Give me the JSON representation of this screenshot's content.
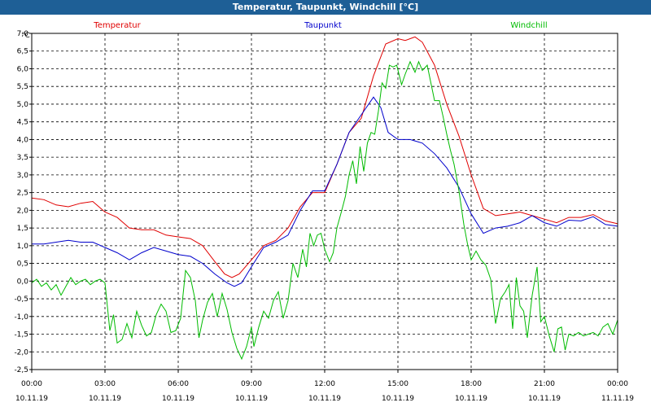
{
  "title": "Temperatur, Taupunkt, Windchill [°C]",
  "chart_data": {
    "type": "line",
    "title": "Temperatur, Taupunkt, Windchill [°C]",
    "ylabel": "°C",
    "ylim": [
      -2.5,
      7.0
    ],
    "y_ticks": [
      "7,0",
      "6,5",
      "6,0",
      "5,5",
      "5,0",
      "4,5",
      "4,0",
      "3,5",
      "3,0",
      "2,5",
      "2,0",
      "1,5",
      "1,0",
      "0,5",
      "0,0",
      "-0,5",
      "-1,0",
      "-1,5",
      "-2,0",
      "-2,5"
    ],
    "x_ticks": [
      {
        "time": "00:00",
        "date": "10.11.19"
      },
      {
        "time": "03:00",
        "date": "10.11.19"
      },
      {
        "time": "06:00",
        "date": "10.11.19"
      },
      {
        "time": "09:00",
        "date": "10.11.19"
      },
      {
        "time": "12:00",
        "date": "10.11.19"
      },
      {
        "time": "15:00",
        "date": "10.11.19"
      },
      {
        "time": "18:00",
        "date": "10.11.19"
      },
      {
        "time": "21:00",
        "date": "10.11.19"
      },
      {
        "time": "00:00",
        "date": "11.11.19"
      }
    ],
    "xlim_hours": [
      0,
      24
    ],
    "grid": true,
    "series": [
      {
        "name": "Temperatur",
        "color": "#e00000",
        "points": [
          [
            0,
            2.35
          ],
          [
            0.5,
            2.3
          ],
          [
            1,
            2.15
          ],
          [
            1.5,
            2.1
          ],
          [
            2,
            2.2
          ],
          [
            2.5,
            2.25
          ],
          [
            3,
            1.95
          ],
          [
            3.5,
            1.8
          ],
          [
            3.75,
            1.65
          ],
          [
            4,
            1.5
          ],
          [
            4.5,
            1.45
          ],
          [
            5,
            1.45
          ],
          [
            5.5,
            1.3
          ],
          [
            6,
            1.25
          ],
          [
            6.5,
            1.2
          ],
          [
            7,
            1.0
          ],
          [
            7.5,
            0.55
          ],
          [
            7.9,
            0.2
          ],
          [
            8.2,
            0.1
          ],
          [
            8.5,
            0.2
          ],
          [
            9,
            0.6
          ],
          [
            9.5,
            1.0
          ],
          [
            10,
            1.15
          ],
          [
            10.5,
            1.5
          ],
          [
            11,
            2.1
          ],
          [
            11.5,
            2.5
          ],
          [
            12,
            2.5
          ],
          [
            12.5,
            3.3
          ],
          [
            13,
            4.2
          ],
          [
            13.5,
            4.6
          ],
          [
            14,
            5.8
          ],
          [
            14.5,
            6.7
          ],
          [
            15,
            6.85
          ],
          [
            15.3,
            6.8
          ],
          [
            15.7,
            6.9
          ],
          [
            16,
            6.75
          ],
          [
            16.5,
            6.1
          ],
          [
            17,
            5.0
          ],
          [
            17.5,
            4.1
          ],
          [
            18,
            3.0
          ],
          [
            18.5,
            2.05
          ],
          [
            19,
            1.85
          ],
          [
            19.5,
            1.9
          ],
          [
            20,
            1.95
          ],
          [
            20.5,
            1.85
          ],
          [
            21,
            1.75
          ],
          [
            21.5,
            1.65
          ],
          [
            22,
            1.8
          ],
          [
            22.5,
            1.8
          ],
          [
            23,
            1.88
          ],
          [
            23.5,
            1.7
          ],
          [
            24,
            1.62
          ]
        ]
      },
      {
        "name": "Taupunkt",
        "color": "#0000cc",
        "points": [
          [
            0,
            1.05
          ],
          [
            0.5,
            1.05
          ],
          [
            1,
            1.1
          ],
          [
            1.5,
            1.15
          ],
          [
            2,
            1.1
          ],
          [
            2.5,
            1.1
          ],
          [
            3,
            0.95
          ],
          [
            3.5,
            0.8
          ],
          [
            4,
            0.6
          ],
          [
            4.5,
            0.8
          ],
          [
            5,
            0.95
          ],
          [
            5.5,
            0.85
          ],
          [
            6,
            0.75
          ],
          [
            6.5,
            0.7
          ],
          [
            7,
            0.5
          ],
          [
            7.5,
            0.2
          ],
          [
            8,
            -0.05
          ],
          [
            8.3,
            -0.15
          ],
          [
            8.6,
            -0.05
          ],
          [
            9,
            0.4
          ],
          [
            9.5,
            0.95
          ],
          [
            10,
            1.1
          ],
          [
            10.5,
            1.3
          ],
          [
            11,
            2.0
          ],
          [
            11.5,
            2.55
          ],
          [
            12,
            2.55
          ],
          [
            12.5,
            3.3
          ],
          [
            13,
            4.2
          ],
          [
            13.5,
            4.7
          ],
          [
            14,
            5.2
          ],
          [
            14.3,
            4.9
          ],
          [
            14.6,
            4.2
          ],
          [
            15,
            4.0
          ],
          [
            15.5,
            4.0
          ],
          [
            16,
            3.9
          ],
          [
            16.5,
            3.6
          ],
          [
            17,
            3.2
          ],
          [
            17.5,
            2.65
          ],
          [
            18,
            1.9
          ],
          [
            18.5,
            1.35
          ],
          [
            19,
            1.5
          ],
          [
            19.5,
            1.55
          ],
          [
            20,
            1.65
          ],
          [
            20.5,
            1.85
          ],
          [
            21,
            1.65
          ],
          [
            21.5,
            1.55
          ],
          [
            22,
            1.72
          ],
          [
            22.5,
            1.7
          ],
          [
            23,
            1.82
          ],
          [
            23.5,
            1.6
          ],
          [
            24,
            1.55
          ]
        ]
      },
      {
        "name": "Windchill",
        "color": "#00bb00",
        "points": [
          [
            0,
            -0.05
          ],
          [
            0.2,
            0.05
          ],
          [
            0.4,
            -0.15
          ],
          [
            0.6,
            -0.05
          ],
          [
            0.8,
            -0.25
          ],
          [
            1,
            -0.1
          ],
          [
            1.2,
            -0.4
          ],
          [
            1.4,
            -0.15
          ],
          [
            1.6,
            0.1
          ],
          [
            1.8,
            -0.1
          ],
          [
            2,
            0.0
          ],
          [
            2.2,
            0.05
          ],
          [
            2.4,
            -0.1
          ],
          [
            2.6,
            0.0
          ],
          [
            2.8,
            0.05
          ],
          [
            3,
            -0.05
          ],
          [
            3.2,
            -1.4
          ],
          [
            3.35,
            -0.95
          ],
          [
            3.5,
            -1.75
          ],
          [
            3.7,
            -1.65
          ],
          [
            3.9,
            -1.2
          ],
          [
            4.1,
            -1.6
          ],
          [
            4.3,
            -0.85
          ],
          [
            4.5,
            -1.25
          ],
          [
            4.7,
            -1.55
          ],
          [
            4.9,
            -1.45
          ],
          [
            5.1,
            -0.95
          ],
          [
            5.3,
            -0.65
          ],
          [
            5.5,
            -0.85
          ],
          [
            5.7,
            -1.45
          ],
          [
            5.9,
            -1.4
          ],
          [
            6.1,
            -1.05
          ],
          [
            6.3,
            0.3
          ],
          [
            6.5,
            0.1
          ],
          [
            6.7,
            -0.55
          ],
          [
            6.85,
            -1.6
          ],
          [
            7.0,
            -1.1
          ],
          [
            7.2,
            -0.6
          ],
          [
            7.4,
            -0.35
          ],
          [
            7.6,
            -1.0
          ],
          [
            7.8,
            -0.35
          ],
          [
            8.0,
            -0.8
          ],
          [
            8.2,
            -1.45
          ],
          [
            8.4,
            -1.9
          ],
          [
            8.6,
            -2.2
          ],
          [
            8.8,
            -1.85
          ],
          [
            9.0,
            -1.3
          ],
          [
            9.1,
            -1.85
          ],
          [
            9.3,
            -1.3
          ],
          [
            9.5,
            -0.85
          ],
          [
            9.7,
            -1.05
          ],
          [
            9.9,
            -0.55
          ],
          [
            10.1,
            -0.3
          ],
          [
            10.3,
            -1.05
          ],
          [
            10.5,
            -0.55
          ],
          [
            10.7,
            0.5
          ],
          [
            10.9,
            0.1
          ],
          [
            11.1,
            0.9
          ],
          [
            11.25,
            0.4
          ],
          [
            11.4,
            1.35
          ],
          [
            11.55,
            1.0
          ],
          [
            11.7,
            1.3
          ],
          [
            11.85,
            1.35
          ],
          [
            12.0,
            0.9
          ],
          [
            12.2,
            0.55
          ],
          [
            12.35,
            0.8
          ],
          [
            12.5,
            1.5
          ],
          [
            12.7,
            2.0
          ],
          [
            12.85,
            2.4
          ],
          [
            13.0,
            3.0
          ],
          [
            13.15,
            3.4
          ],
          [
            13.3,
            2.75
          ],
          [
            13.45,
            3.8
          ],
          [
            13.6,
            3.1
          ],
          [
            13.75,
            3.9
          ],
          [
            13.9,
            4.2
          ],
          [
            14.05,
            4.15
          ],
          [
            14.2,
            4.8
          ],
          [
            14.35,
            5.6
          ],
          [
            14.5,
            5.45
          ],
          [
            14.65,
            6.1
          ],
          [
            14.8,
            6.05
          ],
          [
            14.95,
            6.1
          ],
          [
            15.15,
            5.55
          ],
          [
            15.3,
            5.85
          ],
          [
            15.5,
            6.2
          ],
          [
            15.7,
            5.9
          ],
          [
            15.85,
            6.2
          ],
          [
            16.0,
            5.95
          ],
          [
            16.2,
            6.1
          ],
          [
            16.35,
            5.6
          ],
          [
            16.5,
            5.1
          ],
          [
            16.7,
            5.1
          ],
          [
            16.85,
            4.65
          ],
          [
            17.0,
            4.15
          ],
          [
            17.15,
            3.7
          ],
          [
            17.3,
            3.3
          ],
          [
            17.5,
            2.55
          ],
          [
            17.7,
            1.6
          ],
          [
            17.85,
            1.05
          ],
          [
            18.0,
            0.6
          ],
          [
            18.2,
            0.85
          ],
          [
            18.4,
            0.6
          ],
          [
            18.6,
            0.45
          ],
          [
            18.8,
            0.05
          ],
          [
            19.0,
            -1.2
          ],
          [
            19.2,
            -0.5
          ],
          [
            19.4,
            -0.3
          ],
          [
            19.55,
            -0.1
          ],
          [
            19.7,
            -1.35
          ],
          [
            19.85,
            0.1
          ],
          [
            20.0,
            -0.7
          ],
          [
            20.15,
            -0.85
          ],
          [
            20.3,
            -1.6
          ],
          [
            20.5,
            -0.4
          ],
          [
            20.7,
            0.4
          ],
          [
            20.85,
            -1.15
          ],
          [
            21.0,
            -1.0
          ],
          [
            21.2,
            -1.55
          ],
          [
            21.4,
            -2.0
          ],
          [
            21.55,
            -1.35
          ],
          [
            21.7,
            -1.3
          ],
          [
            21.85,
            -1.95
          ],
          [
            22.0,
            -1.5
          ],
          [
            22.2,
            -1.55
          ],
          [
            22.4,
            -1.45
          ],
          [
            22.6,
            -1.55
          ],
          [
            22.8,
            -1.5
          ],
          [
            23.0,
            -1.45
          ],
          [
            23.2,
            -1.55
          ],
          [
            23.4,
            -1.3
          ],
          [
            23.6,
            -1.2
          ],
          [
            23.8,
            -1.5
          ],
          [
            24.0,
            -1.1
          ]
        ]
      }
    ]
  }
}
